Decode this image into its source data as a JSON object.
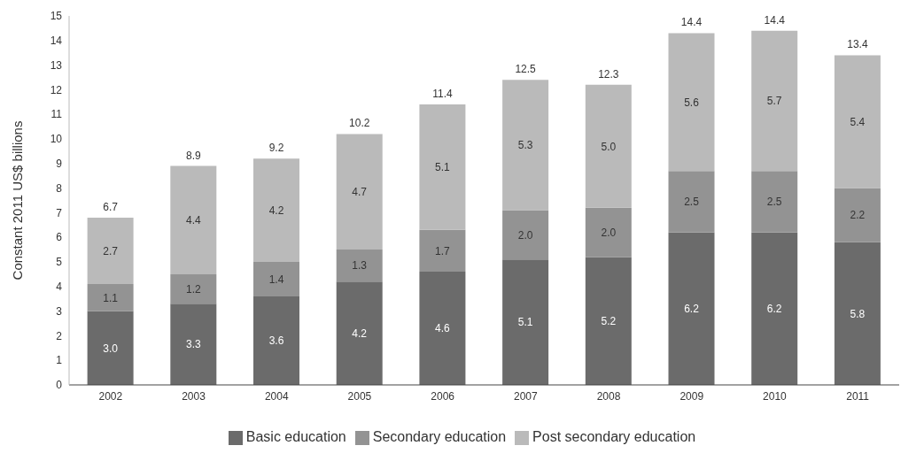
{
  "chart_data": {
    "type": "bar",
    "stacked": true,
    "ylabel": "Constant 2011 US$ billions",
    "categories": [
      "2002",
      "2003",
      "2004",
      "2005",
      "2006",
      "2007",
      "2008",
      "2009",
      "2010",
      "2011"
    ],
    "series": [
      {
        "name": "Basic education",
        "color": "#6b6b6b",
        "values": [
          3.0,
          3.3,
          3.6,
          4.2,
          4.6,
          5.1,
          5.2,
          6.2,
          6.2,
          5.8
        ],
        "value_labels": [
          "3.0",
          "3.3",
          "3.6",
          "4.2",
          "4.6",
          "5.1",
          "5.2",
          "6.2",
          "6.2",
          "5.8"
        ]
      },
      {
        "name": "Secondary education",
        "color": "#939393",
        "values": [
          1.1,
          1.2,
          1.4,
          1.3,
          1.7,
          2.0,
          2.0,
          2.5,
          2.5,
          2.2
        ],
        "value_labels": [
          "1.1",
          "1.2",
          "1.4",
          "1.3",
          "1.7",
          "2.0",
          "2.0",
          "2.5",
          "2.5",
          "2.2"
        ]
      },
      {
        "name": "Post secondary education",
        "color": "#bababa",
        "values": [
          2.7,
          4.4,
          4.2,
          4.7,
          5.1,
          5.3,
          5.0,
          5.6,
          5.7,
          5.4
        ],
        "value_labels": [
          "2.7",
          "4.4",
          "4.2",
          "4.7",
          "5.1",
          "5.3",
          "5.0",
          "5.6",
          "5.7",
          "5.4"
        ]
      }
    ],
    "totals": [
      "6.7",
      "8.9",
      "9.2",
      "10.2",
      "11.4",
      "12.5",
      "12.3",
      "14.4",
      "14.4",
      "13.4"
    ],
    "ylim": [
      0,
      15
    ],
    "yticks": [
      0,
      1,
      2,
      3,
      4,
      5,
      6,
      7,
      8,
      9,
      10,
      11,
      12,
      13,
      14,
      15
    ],
    "grid": false,
    "legend": "bottom"
  }
}
